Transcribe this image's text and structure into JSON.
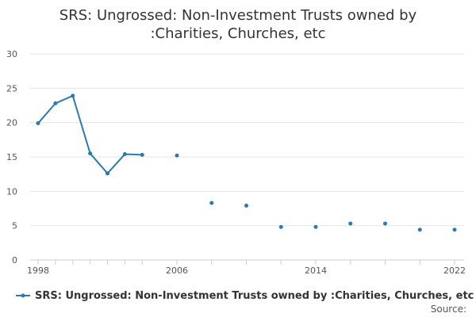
{
  "chart_data": {
    "type": "line",
    "title_lines": [
      "SRS: Ungrossed: Non-Investment Trusts owned by",
      ":Charities, Churches, etc"
    ],
    "xlabel": "",
    "ylabel": "",
    "x_range": [
      1998,
      2022
    ],
    "ylim": [
      0,
      30
    ],
    "y_ticks": [
      0,
      5,
      10,
      15,
      20,
      25,
      30
    ],
    "x_tick_labels": [
      "1998",
      "2006",
      "2014",
      "2022"
    ],
    "grid": "horizontal",
    "legend_position": "bottom",
    "series": [
      {
        "name": "SRS: Ungrossed: Non-Investment Trusts owned by :Charities, Churches, etc",
        "color": "#2a7ab0",
        "x": [
          1998,
          1999,
          2000,
          2001,
          2002,
          2003,
          2004,
          2006,
          2008,
          2010,
          2012,
          2014,
          2016,
          2018,
          2020,
          2022
        ],
        "values": [
          19.9,
          22.8,
          23.9,
          15.5,
          12.6,
          15.4,
          15.3,
          15.2,
          8.3,
          7.9,
          4.8,
          4.8,
          5.3,
          5.3,
          4.4,
          4.4
        ]
      }
    ]
  },
  "source_label": "Source:"
}
